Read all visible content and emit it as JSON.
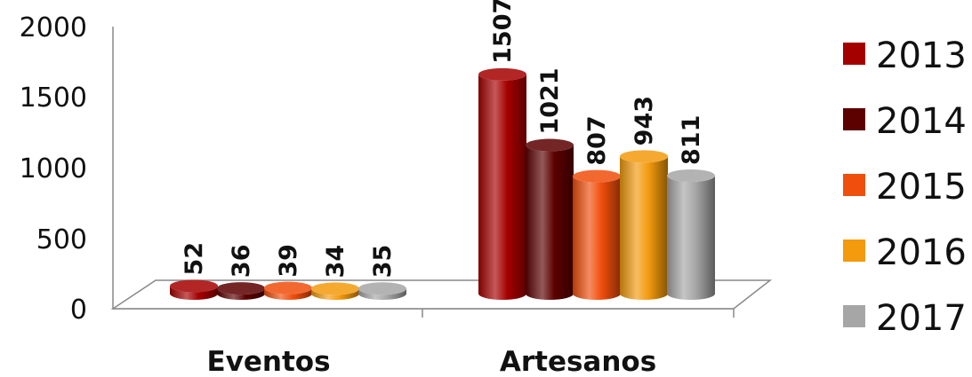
{
  "chart_data": {
    "type": "bar",
    "categories": [
      "Eventos",
      "Artesanos"
    ],
    "series": [
      {
        "name": "2013",
        "values": [
          52,
          1507
        ],
        "color": "#a50000"
      },
      {
        "name": "2014",
        "values": [
          36,
          1021
        ],
        "color": "#5c0000"
      },
      {
        "name": "2015",
        "values": [
          39,
          807
        ],
        "color": "#f04e0c"
      },
      {
        "name": "2016",
        "values": [
          34,
          943
        ],
        "color": "#f39a0d"
      },
      {
        "name": "2017",
        "values": [
          35,
          811
        ],
        "color": "#a6a6a6"
      }
    ],
    "yticks": [
      "0",
      "500",
      "1000",
      "1500",
      "2000"
    ],
    "ylim": [
      0,
      2000
    ],
    "title": "",
    "xlabel": "",
    "ylabel": "",
    "grid": false,
    "legend": "right",
    "style": "3d-cylinder"
  }
}
